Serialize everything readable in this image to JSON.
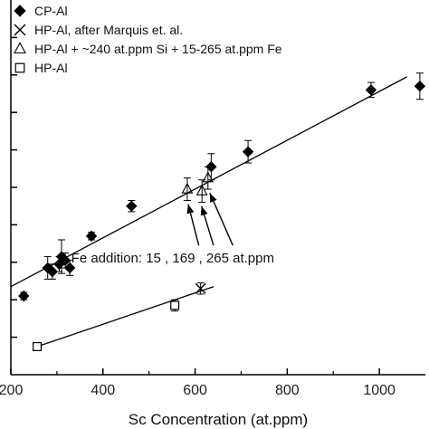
{
  "chart_data": {
    "type": "scatter",
    "xlabel": "Sc Concentration (at.ppm)",
    "ylabel": "",
    "xlim": [
      200,
      1100
    ],
    "ylim": [
      0,
      10
    ],
    "x_ticks": [
      200,
      400,
      600,
      800,
      1000
    ],
    "x_tick_labels": [
      "200",
      "400",
      "600",
      "800",
      "1000"
    ],
    "y_ticks": [
      1,
      2,
      3,
      4,
      5,
      6,
      7,
      8,
      9
    ],
    "grid": false,
    "legend_position": "top-left",
    "series": [
      {
        "name": "CP-Al",
        "marker": "diamond",
        "filled": true,
        "points": [
          {
            "x": 228,
            "y": 2.1,
            "err": 0.1
          },
          {
            "x": 280,
            "y": 2.85,
            "err": 0.3
          },
          {
            "x": 290,
            "y": 2.75,
            "err": 0.2
          },
          {
            "x": 305,
            "y": 2.95,
            "err": 0.2
          },
          {
            "x": 310,
            "y": 3.15,
            "err": 0.45
          },
          {
            "x": 318,
            "y": 3.05,
            "err": 0.2
          },
          {
            "x": 328,
            "y": 2.85,
            "err": 0.2
          },
          {
            "x": 375,
            "y": 3.7,
            "err": 0.1
          },
          {
            "x": 462,
            "y": 4.5,
            "err": 0.15
          },
          {
            "x": 635,
            "y": 5.55,
            "err": 0.35
          },
          {
            "x": 715,
            "y": 5.95,
            "err": 0.3
          },
          {
            "x": 982,
            "y": 7.6,
            "err": 0.2
          },
          {
            "x": 1088,
            "y": 7.7,
            "err": 0.35
          }
        ]
      },
      {
        "name": "HP-Al, after Marquis et. al.",
        "marker": "x",
        "filled": false,
        "points": [
          {
            "x": 612,
            "y": 2.3,
            "err": 0.15
          }
        ]
      },
      {
        "name": "HP-Al + ~240 at.ppm Si + 15-265 at.ppm Fe",
        "marker": "triangle",
        "filled": false,
        "points": [
          {
            "x": 583,
            "y": 4.95,
            "err": 0.3
          },
          {
            "x": 615,
            "y": 4.9,
            "err": 0.3
          },
          {
            "x": 628,
            "y": 5.25,
            "err": 0.3
          }
        ]
      },
      {
        "name": "HP-Al",
        "marker": "square",
        "filled": false,
        "points": [
          {
            "x": 257,
            "y": 0.75,
            "err": 0.1
          },
          {
            "x": 556,
            "y": 1.85,
            "err": 0.15
          }
        ]
      }
    ],
    "fit_lines": [
      {
        "x1": 200,
        "y1": 2.35,
        "x2": 1060,
        "y2": 7.95
      },
      {
        "x1": 250,
        "y1": 0.72,
        "x2": 640,
        "y2": 2.35
      }
    ],
    "annotations": [
      {
        "text": "Fe addition: 15 , 169 , 265 at.ppm",
        "x": 331,
        "y": 3.0,
        "arrows": [
          {
            "from_x": 608,
            "from_y": 3.45,
            "to_x": 585,
            "to_y": 4.55
          },
          {
            "from_x": 640,
            "from_y": 3.45,
            "to_x": 614,
            "to_y": 4.5
          },
          {
            "from_x": 682,
            "from_y": 3.45,
            "to_x": 632,
            "to_y": 4.85
          }
        ]
      }
    ]
  }
}
